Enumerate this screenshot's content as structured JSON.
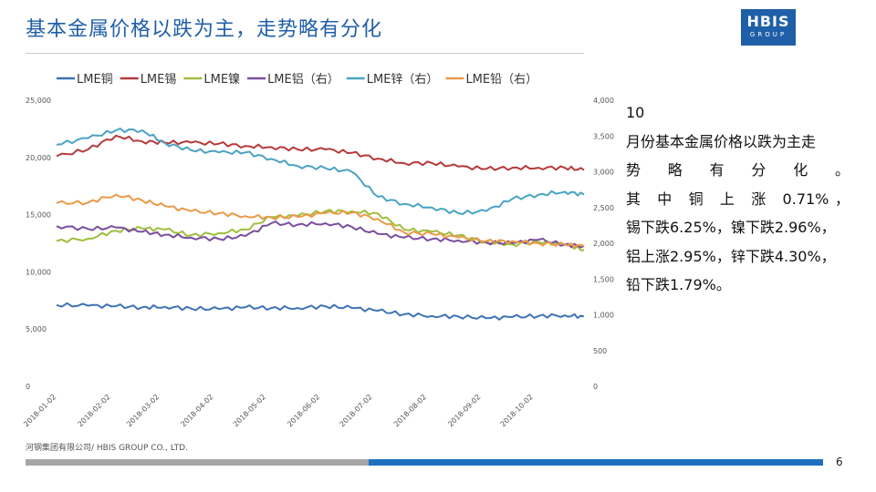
{
  "page": {
    "title": "基本金属价格以跌为主，走势略有分化",
    "logo_main": "HBIS",
    "logo_sub": "GROUP",
    "footer": "河钢集团有限公司/ HBIS GROUP CO., LTD.",
    "page_number": "6",
    "accent_blue": "#1f5fa8"
  },
  "side": {
    "month": "10",
    "line1": "月份基本金属价格以跌为主走",
    "line2": "势　略　有　分　化　。",
    "line3": "其 中 铜 上 涨 0.71%，",
    "line4": "锡下跌6.25%，镍下跌2.96%，",
    "line5": "铝上涨2.95%，锌下跌4.30%，",
    "line6": "铅下跌1.79%。"
  },
  "chart_data": {
    "type": "line",
    "x": [
      "2018-01-02",
      "2018-01-20",
      "2018-02-05",
      "2018-02-20",
      "2018-03-05",
      "2018-03-20",
      "2018-04-05",
      "2018-04-20",
      "2018-05-05",
      "2018-05-20",
      "2018-06-05",
      "2018-06-20",
      "2018-07-05",
      "2018-07-20",
      "2018-08-05",
      "2018-08-20",
      "2018-09-05",
      "2018-09-20",
      "2018-10-05",
      "2018-10-20",
      "2018-10-31"
    ],
    "x_ticks": [
      "2018-01-02",
      "2018-02-02",
      "2018-03-02",
      "2018-04-02",
      "2018-05-02",
      "2018-06-02",
      "2018-07-02",
      "2018-08-02",
      "2018-09-02",
      "2018-10-02"
    ],
    "y_left": {
      "range": [
        0,
        25000
      ],
      "ticks": [
        "0",
        "5,000",
        "10,000",
        "15,000",
        "20,000",
        "25,000"
      ]
    },
    "y_right": {
      "range": [
        0,
        4000
      ],
      "ticks": [
        "0",
        "500",
        "1,000",
        "1,500",
        "2,000",
        "2,500",
        "3,000",
        "3,500",
        "4,000"
      ]
    },
    "legend_position": "top",
    "grid": false,
    "series": [
      {
        "name": "LME铜",
        "axis": "left",
        "color": "#3e73b5",
        "values": [
          7100,
          7050,
          7000,
          6900,
          6950,
          6800,
          6750,
          6900,
          6850,
          6850,
          7000,
          6850,
          6600,
          6300,
          6150,
          6100,
          5950,
          6050,
          6150,
          6200,
          6100
        ]
      },
      {
        "name": "LME锡",
        "axis": "left",
        "color": "#b53a3a",
        "values": [
          20100,
          20700,
          21900,
          21400,
          21300,
          21300,
          21200,
          21000,
          20900,
          20700,
          20700,
          20400,
          19900,
          19500,
          19500,
          19200,
          19000,
          19100,
          19100,
          19100,
          18900
        ]
      },
      {
        "name": "LME镍",
        "axis": "left",
        "color": "#9fbe3e",
        "values": [
          12700,
          12900,
          13600,
          13800,
          13700,
          13200,
          13400,
          13700,
          14800,
          14900,
          15300,
          15300,
          15100,
          13700,
          13500,
          13200,
          12600,
          12400,
          12600,
          12400,
          11900
        ]
      },
      {
        "name": "LME铝（右）",
        "axis": "right",
        "color": "#7a4e9e",
        "values": [
          2240,
          2200,
          2220,
          2160,
          2120,
          2080,
          2060,
          2100,
          2280,
          2260,
          2280,
          2230,
          2130,
          2080,
          2060,
          2040,
          2010,
          2000,
          2050,
          1980,
          1960
        ]
      },
      {
        "name": "LME锌（右）",
        "axis": "right",
        "color": "#4aa3c2",
        "values": [
          3380,
          3470,
          3580,
          3580,
          3400,
          3300,
          3270,
          3270,
          3180,
          3080,
          3050,
          3000,
          2650,
          2550,
          2500,
          2420,
          2450,
          2620,
          2680,
          2720,
          2680
        ]
      },
      {
        "name": "LME铅（右）",
        "axis": "right",
        "color": "#ea9a48",
        "values": [
          2560,
          2570,
          2680,
          2600,
          2520,
          2450,
          2420,
          2380,
          2360,
          2370,
          2420,
          2430,
          2340,
          2150,
          2130,
          2080,
          2030,
          2030,
          2000,
          1980,
          1960
        ]
      }
    ]
  }
}
